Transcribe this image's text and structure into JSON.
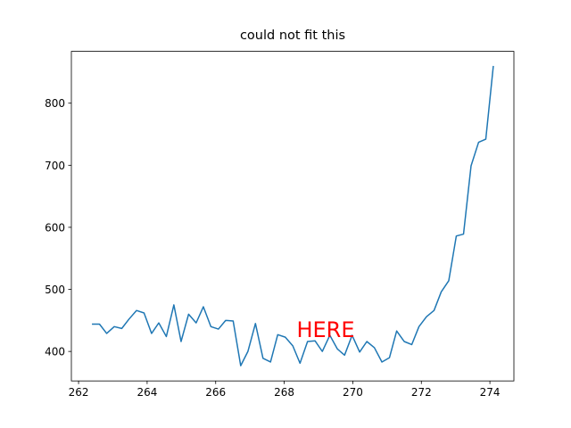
{
  "chart_data": {
    "type": "line",
    "title": "could not fit this",
    "x": [
      262.39,
      262.61,
      262.82,
      263.04,
      263.26,
      263.47,
      263.69,
      263.91,
      264.13,
      264.34,
      264.56,
      264.78,
      264.99,
      265.21,
      265.43,
      265.64,
      265.86,
      266.08,
      266.29,
      266.51,
      266.73,
      266.94,
      267.16,
      267.38,
      267.6,
      267.81,
      268.03,
      268.25,
      268.46,
      268.68,
      268.9,
      269.11,
      269.33,
      269.55,
      269.76,
      269.98,
      270.2,
      270.41,
      270.63,
      270.85,
      271.07,
      271.28,
      271.5,
      271.72,
      271.93,
      272.15,
      272.37,
      272.58,
      272.8,
      273.02,
      273.23,
      273.45,
      273.67,
      273.88,
      274.1
    ],
    "series": [
      {
        "color": "#1f77b4",
        "values": [
          444,
          444,
          429,
          440,
          437,
          452,
          466,
          462,
          429,
          446,
          424,
          475,
          416,
          460,
          446,
          472,
          440,
          436,
          450,
          449,
          377,
          400,
          445,
          389,
          383,
          427,
          423,
          409,
          381,
          416,
          417,
          400,
          426,
          404,
          394,
          426,
          399,
          416,
          406,
          383,
          390,
          433,
          416,
          411,
          440,
          456,
          466,
          496,
          514,
          586,
          589,
          699,
          737,
          742,
          860
        ]
      }
    ],
    "xlim": [
      261.79,
      274.7
    ],
    "xticks": [
      262,
      264,
      266,
      268,
      270,
      272,
      274
    ],
    "ylim": [
      352.5,
      883.5
    ],
    "yticks": [
      400,
      500,
      600,
      700,
      800
    ],
    "annotations": [
      "HERE"
    ]
  }
}
